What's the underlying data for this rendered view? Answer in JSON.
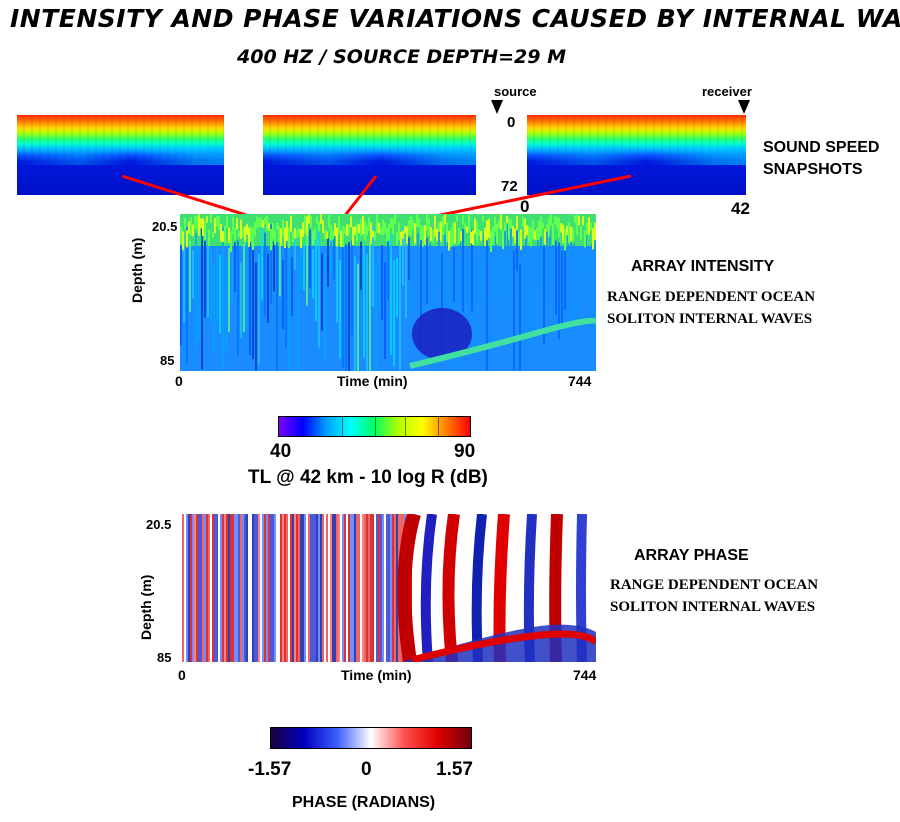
{
  "header": {
    "title": "INTENSITY AND PHASE VARIATIONS CAUSED BY INTERNAL WAVES",
    "subtitle": "400 HZ / SOURCE DEPTH=29 M"
  },
  "snapshots": {
    "source_label": "source",
    "receiver_label": "receiver",
    "depth_top": "0",
    "depth_bottom": "72",
    "range_start": "0",
    "range_end": "42",
    "caption_line1": "SOUND SPEED",
    "caption_line2": "SNAPSHOTS"
  },
  "intensity_panel": {
    "ylabel": "Depth (m)",
    "y_top": "20.5",
    "y_bottom": "85",
    "xlabel": "Time (min)",
    "x_start": "0",
    "x_end": "744",
    "heading": "ARRAY INTENSITY",
    "line1": "RANGE DEPENDENT OCEAN",
    "line2": "SOLITON INTERNAL WAVES"
  },
  "intensity_colorbar": {
    "min": "40",
    "max": "90",
    "label": "TL @ 42 km - 10 log R (dB)",
    "stops": [
      "#7a00ff",
      "#0000ff",
      "#00a0ff",
      "#00ffff",
      "#00ff60",
      "#b0ff00",
      "#ffff00",
      "#ff8000",
      "#ff0000"
    ]
  },
  "phase_panel": {
    "ylabel": "Depth (m)",
    "y_top": "20.5",
    "y_bottom": "85",
    "xlabel": "Time (min)",
    "x_start": "0",
    "x_end": "744",
    "heading": "ARRAY PHASE",
    "line1": "RANGE DEPENDENT OCEAN",
    "line2": "SOLITON INTERNAL WAVES"
  },
  "phase_colorbar": {
    "min": "-1.57",
    "mid": "0",
    "max": "1.57",
    "label": "PHASE  (RADIANS)",
    "stops": [
      "#1a0040",
      "#0000c0",
      "#4060ff",
      "#ffffff",
      "#ff5050",
      "#e00000",
      "#700010"
    ]
  },
  "colors": {
    "connector": "#ff0000"
  }
}
